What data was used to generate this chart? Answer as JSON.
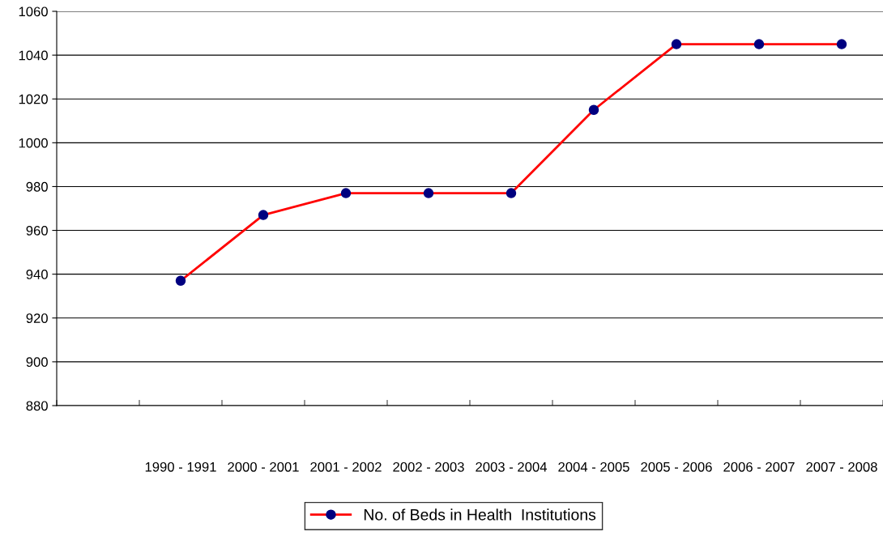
{
  "chart_data": {
    "type": "line",
    "categories": [
      null,
      "1990 - 1991",
      "2000 - 2001",
      "2001 - 2002",
      "2002 - 2003",
      "2003 - 2004",
      "2004 - 2005",
      "2005 - 2006",
      "2006 - 2007",
      "2007 - 2008"
    ],
    "series": [
      {
        "name": "No. of Beds in Health  Institutions",
        "color": "#ff0000",
        "values": [
          null,
          937,
          967,
          977,
          977,
          977,
          1015,
          1045,
          1045,
          1045
        ]
      }
    ],
    "ylim": [
      880,
      1060
    ],
    "yticks": [
      880,
      900,
      920,
      940,
      960,
      980,
      1000,
      1020,
      1040,
      1060
    ],
    "grid": "y",
    "legend": "bottom",
    "marker": "circle",
    "line_style": "solid"
  }
}
